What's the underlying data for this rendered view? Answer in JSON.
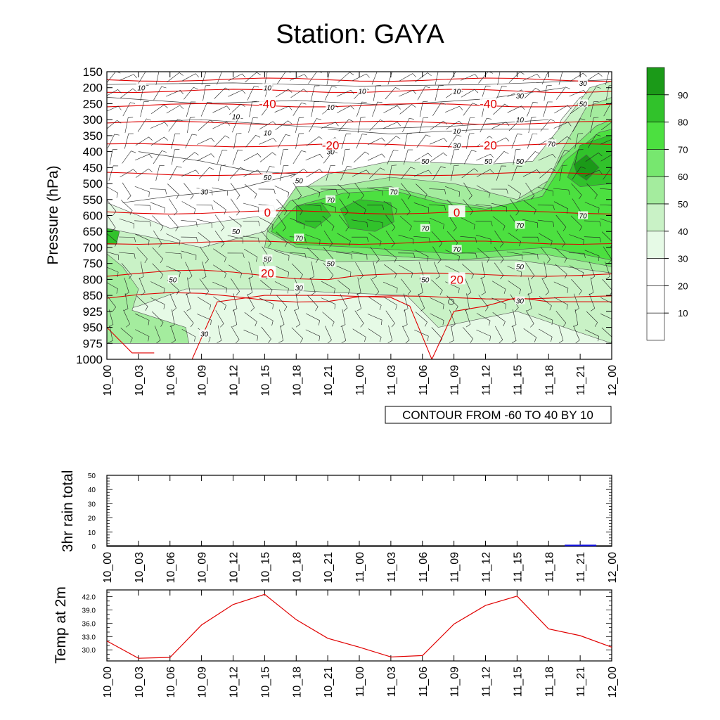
{
  "title": "Station: GAYA",
  "chart_data": [
    {
      "type": "heatmap",
      "name": "time-pressure cross section",
      "ylabel": "Pressure (hPa)",
      "pressure_levels": [
        "150",
        "200",
        "250",
        "300",
        "350",
        "400",
        "450",
        "500",
        "550",
        "600",
        "650",
        "700",
        "750",
        "800",
        "850",
        "925",
        "950",
        "975",
        "1000"
      ],
      "time_labels": [
        "10_00",
        "10_03",
        "10_06",
        "10_09",
        "10_12",
        "10_15",
        "10_18",
        "10_21",
        "11_00",
        "11_03",
        "11_06",
        "11_09",
        "11_12",
        "11_15",
        "11_18",
        "11_21",
        "12_00"
      ],
      "colorbar_labels": [
        "10",
        "20",
        "30",
        "40",
        "50",
        "60",
        "70",
        "80",
        "90"
      ],
      "colorbar_colors": [
        "#ffffff",
        "#ffffff",
        "#ffffff",
        "#e6fae6",
        "#c9f2c6",
        "#a4ec9e",
        "#77e76f",
        "#4ce040",
        "#31c22b",
        "#1b9a18"
      ],
      "shading_labels": [
        {
          "text": "10",
          "time": "10_03",
          "p": "200"
        },
        {
          "text": "10",
          "time": "10_15",
          "p": "200"
        },
        {
          "text": "10",
          "time": "11_00",
          "p": "210"
        },
        {
          "text": "10",
          "time": "11_09",
          "p": "210"
        },
        {
          "text": "10",
          "time": "10_21",
          "p": "260"
        },
        {
          "text": "10",
          "time": "10_12",
          "p": "290"
        },
        {
          "text": "10",
          "time": "10_15",
          "p": "340"
        },
        {
          "text": "10",
          "time": "11_09",
          "p": "335"
        },
        {
          "text": "10",
          "time": "11_15",
          "p": "300"
        },
        {
          "text": "30",
          "time": "11_15",
          "p": "225"
        },
        {
          "text": "30",
          "time": "11_21",
          "p": "185"
        },
        {
          "text": "50",
          "time": "11_21",
          "p": "250"
        },
        {
          "text": "30",
          "time": "10_21",
          "p": "400"
        },
        {
          "text": "30",
          "time": "11_09",
          "p": "380"
        },
        {
          "text": "70",
          "time": "11_18",
          "p": "375"
        },
        {
          "text": "50",
          "time": "11_06",
          "p": "430"
        },
        {
          "text": "50",
          "time": "11_12",
          "p": "430"
        },
        {
          "text": "50",
          "time": "11_15",
          "p": "430"
        },
        {
          "text": "50",
          "time": "10_15",
          "p": "480"
        },
        {
          "text": "50",
          "time": "10_18",
          "p": "490"
        },
        {
          "text": "30",
          "time": "10_09",
          "p": "525"
        },
        {
          "text": "70",
          "time": "10_21",
          "p": "550"
        },
        {
          "text": "70",
          "time": "11_03",
          "p": "525"
        },
        {
          "text": "70",
          "time": "11_21",
          "p": "600"
        },
        {
          "text": "50",
          "time": "10_12",
          "p": "650"
        },
        {
          "text": "70",
          "time": "11_15",
          "p": "630"
        },
        {
          "text": "70",
          "time": "11_06",
          "p": "640"
        },
        {
          "text": "70",
          "time": "10_18",
          "p": "670"
        },
        {
          "text": "70",
          "time": "11_09",
          "p": "705"
        },
        {
          "text": "50",
          "time": "10_15",
          "p": "735"
        },
        {
          "text": "50",
          "time": "10_21",
          "p": "750"
        },
        {
          "text": "50",
          "time": "11_15",
          "p": "760"
        },
        {
          "text": "50",
          "time": "10_06",
          "p": "800"
        },
        {
          "text": "50",
          "time": "11_06",
          "p": "800"
        },
        {
          "text": "30",
          "time": "10_18",
          "p": "825"
        },
        {
          "text": "30",
          "time": "11_15",
          "p": "875"
        },
        {
          "text": "30",
          "time": "10_09",
          "p": "960"
        }
      ],
      "temperature_labels": [
        {
          "text": "-40",
          "time": "10_15",
          "p": "250"
        },
        {
          "text": "-40",
          "time": "11_12",
          "p": "250"
        },
        {
          "text": "-20",
          "time": "10_21",
          "p": "380"
        },
        {
          "text": "-20",
          "time": "11_12",
          "p": "380"
        },
        {
          "text": "0",
          "time": "10_15",
          "p": "590"
        },
        {
          "text": "0",
          "time": "11_09",
          "p": "590"
        },
        {
          "text": "20",
          "time": "10_15",
          "p": "780"
        },
        {
          "text": "20",
          "time": "11_09",
          "p": "800"
        }
      ],
      "annotation": "CONTOUR FROM -60 TO 40 BY 10"
    },
    {
      "type": "bar",
      "name": "3hr rain",
      "ylabel": "3hr rain total",
      "ylim": [
        0,
        50
      ],
      "yticks": [
        "0",
        "10",
        "20",
        "30",
        "40",
        "50"
      ],
      "categories": [
        "10_00",
        "10_03",
        "10_06",
        "10_09",
        "10_12",
        "10_15",
        "10_18",
        "10_21",
        "11_00",
        "11_03",
        "11_06",
        "11_09",
        "11_12",
        "11_15",
        "11_18",
        "11_21",
        "12_00"
      ],
      "bar_values": [
        {
          "x": "11_21",
          "value": 1.2
        }
      ]
    },
    {
      "type": "line",
      "name": "2m temperature",
      "ylabel": "Temp at 2m",
      "ylim": [
        27.5,
        43.5
      ],
      "yticks": [
        "30.0",
        "33.0",
        "36.0",
        "39.0",
        "42.0"
      ],
      "x": [
        "10_00",
        "10_03",
        "10_06",
        "10_09",
        "10_12",
        "10_15",
        "10_18",
        "10_21",
        "11_00",
        "11_03",
        "11_06",
        "11_09",
        "11_12",
        "11_15",
        "11_18",
        "11_21",
        "12_00"
      ],
      "values": [
        32.0,
        28.1,
        28.3,
        35.6,
        40.2,
        42.5,
        36.8,
        32.6,
        30.6,
        28.4,
        28.7,
        35.8,
        40.0,
        42.1,
        34.7,
        33.2,
        30.6
      ],
      "color": "#e00000"
    }
  ],
  "colors": {
    "contour_red": "#e00000",
    "rain_bar": "#1a1adb"
  }
}
